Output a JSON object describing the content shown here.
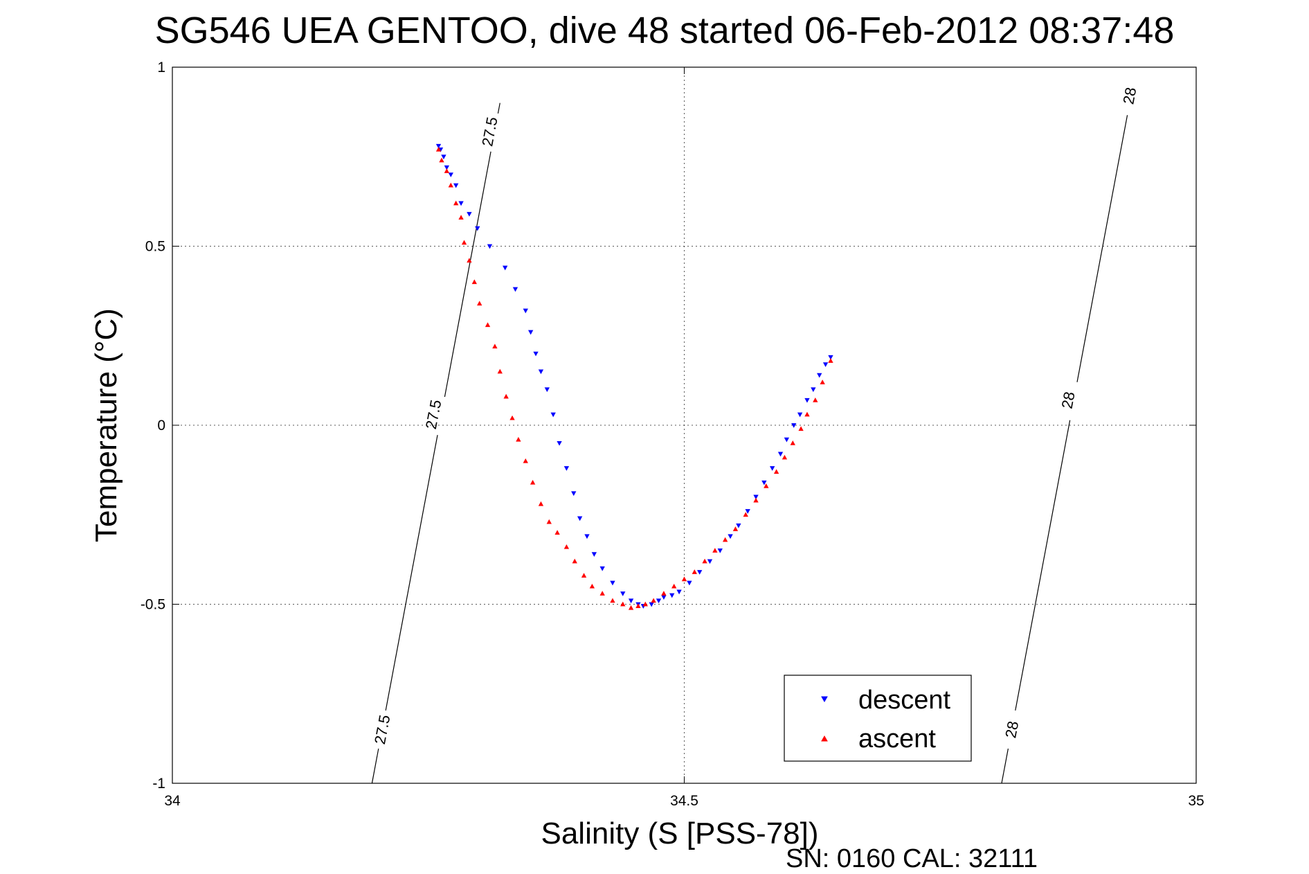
{
  "chart_data": {
    "type": "scatter",
    "title": "SG546 UEA GENTOO, dive 48 started 06-Feb-2012 08:37:48",
    "xlabel": "Salinity (S [PSS-78])",
    "ylabel": "Temperature (°C)",
    "xlim": [
      34,
      35
    ],
    "ylim": [
      -1,
      1
    ],
    "xticks": [
      34,
      34.5,
      35
    ],
    "xtick_labels": [
      "34",
      "34.5",
      "35"
    ],
    "yticks": [
      -1,
      -0.5,
      0,
      0.5,
      1
    ],
    "ytick_labels": [
      "-1",
      "-0.5",
      "0",
      "0.5",
      "1"
    ],
    "grid": true,
    "legend_position": "bottom-right",
    "footnote": "SN: 0160  CAL: 32111",
    "isopycnals": [
      {
        "label": "27.5",
        "points": [
          [
            34.195,
            -1.0
          ],
          [
            34.32,
            0.9
          ]
        ],
        "label_positions": [
          [
            34.205,
            -0.85
          ],
          [
            34.255,
            0.03
          ],
          [
            34.31,
            0.82
          ]
        ]
      },
      {
        "label": "28",
        "points": [
          [
            34.81,
            -1.0
          ],
          [
            34.935,
            0.9
          ]
        ],
        "label_positions": [
          [
            34.82,
            -0.85
          ],
          [
            34.875,
            0.07
          ],
          [
            34.935,
            0.92
          ]
        ]
      }
    ],
    "series": [
      {
        "name": "descent",
        "color": "#0000ff",
        "marker": "triangle-down",
        "x": [
          34.26,
          34.262,
          34.265,
          34.268,
          34.272,
          34.277,
          34.282,
          34.29,
          34.298,
          34.31,
          34.325,
          34.335,
          34.345,
          34.35,
          34.355,
          34.36,
          34.366,
          34.372,
          34.378,
          34.385,
          34.392,
          34.398,
          34.405,
          34.412,
          34.42,
          34.43,
          34.44,
          34.448,
          34.455,
          34.46,
          34.468,
          34.475,
          34.48,
          34.488,
          34.495,
          34.505,
          34.515,
          34.525,
          34.535,
          34.545,
          34.553,
          34.562,
          34.57,
          34.578,
          34.586,
          34.594,
          34.6,
          34.607,
          34.613,
          34.62,
          34.626,
          34.632,
          34.638,
          34.643
        ],
        "y": [
          0.78,
          0.77,
          0.75,
          0.72,
          0.7,
          0.67,
          0.62,
          0.59,
          0.55,
          0.5,
          0.44,
          0.38,
          0.32,
          0.26,
          0.2,
          0.15,
          0.1,
          0.03,
          -0.05,
          -0.12,
          -0.19,
          -0.26,
          -0.31,
          -0.36,
          -0.4,
          -0.44,
          -0.47,
          -0.49,
          -0.5,
          -0.505,
          -0.5,
          -0.49,
          -0.48,
          -0.475,
          -0.465,
          -0.44,
          -0.41,
          -0.38,
          -0.35,
          -0.31,
          -0.28,
          -0.24,
          -0.2,
          -0.16,
          -0.12,
          -0.08,
          -0.04,
          0.0,
          0.03,
          0.07,
          0.1,
          0.14,
          0.17,
          0.19
        ]
      },
      {
        "name": "ascent",
        "color": "#ff0000",
        "marker": "triangle-up",
        "x": [
          34.26,
          34.263,
          34.268,
          34.272,
          34.277,
          34.282,
          34.285,
          34.29,
          34.295,
          34.3,
          34.308,
          34.315,
          34.32,
          34.326,
          34.332,
          34.338,
          34.345,
          34.352,
          34.36,
          34.368,
          34.376,
          34.385,
          34.393,
          34.402,
          34.41,
          34.42,
          34.43,
          34.44,
          34.448,
          34.455,
          34.462,
          34.47,
          34.48,
          34.49,
          34.5,
          34.51,
          34.52,
          34.53,
          34.54,
          34.55,
          34.56,
          34.57,
          34.58,
          34.59,
          34.598,
          34.606,
          34.614,
          34.62,
          34.628,
          34.635,
          34.643
        ],
        "y": [
          0.77,
          0.74,
          0.71,
          0.67,
          0.62,
          0.58,
          0.51,
          0.46,
          0.4,
          0.34,
          0.28,
          0.22,
          0.15,
          0.08,
          0.02,
          -0.04,
          -0.1,
          -0.16,
          -0.22,
          -0.27,
          -0.3,
          -0.34,
          -0.38,
          -0.42,
          -0.45,
          -0.47,
          -0.49,
          -0.5,
          -0.51,
          -0.505,
          -0.5,
          -0.49,
          -0.47,
          -0.45,
          -0.43,
          -0.41,
          -0.38,
          -0.35,
          -0.32,
          -0.29,
          -0.25,
          -0.21,
          -0.17,
          -0.13,
          -0.09,
          -0.05,
          -0.01,
          0.03,
          0.07,
          0.12,
          0.18
        ]
      }
    ]
  }
}
